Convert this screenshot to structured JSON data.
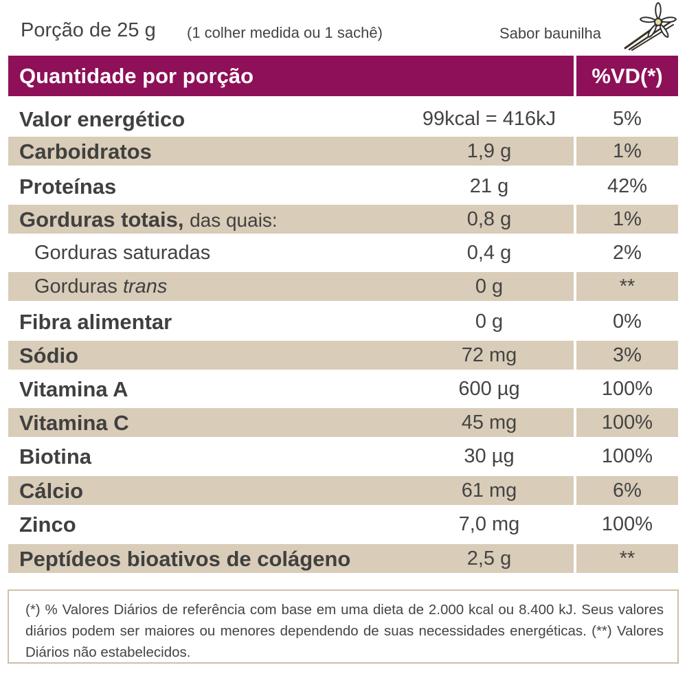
{
  "header": {
    "portion": "Porção de 25 g",
    "spoon": "(1 colher medida ou 1 sachê)",
    "flavor": "Sabor baunilha",
    "col_quantity": "Quantidade por porção",
    "col_vd": "%VD(*)"
  },
  "rows": [
    {
      "label": "Valor energético",
      "amount": "99kcal = 416kJ",
      "vd": "5%"
    },
    {
      "label": "Carboidratos",
      "amount": "1,9 g",
      "vd": "1%"
    },
    {
      "label": "Proteínas",
      "amount": "21 g",
      "vd": "42%"
    },
    {
      "label": "Gorduras totais,",
      "label_suffix": "das quais:",
      "amount": "0,8 g",
      "vd": "1%"
    },
    {
      "label": "Gorduras saturadas",
      "amount": "0,4 g",
      "vd": "2%"
    },
    {
      "label": "Gorduras",
      "label_suffix": "trans",
      "amount": "0 g",
      "vd": "**"
    },
    {
      "label": "Fibra alimentar",
      "amount": "0 g",
      "vd": "0%"
    },
    {
      "label": "Sódio",
      "amount": "72 mg",
      "vd": "3%"
    },
    {
      "label": "Vitamina A",
      "amount": "600 µg",
      "vd": "100%"
    },
    {
      "label": "Vitamina C",
      "amount": "45 mg",
      "vd": "100%"
    },
    {
      "label": "Biotina",
      "amount": "30 µg",
      "vd": "100%"
    },
    {
      "label": "Cálcio",
      "amount": "61 mg",
      "vd": "6%"
    },
    {
      "label": "Zinco",
      "amount": "7,0 mg",
      "vd": "100%"
    },
    {
      "label": "Peptídeos bioativos de colágeno",
      "amount": "2,5 g",
      "vd": "**"
    }
  ],
  "footnote": "(*) % Valores Diários de referência com base em uma dieta de 2.000 kcal ou 8.400 kJ. Seus valores diários podem ser maiores ou menores dependendo de suas necessidades energéticas. (**) Valores Diários não estabelecidos.",
  "colors": {
    "header_bg": "#8e1058",
    "row_shade": "#d9ccb8",
    "text": "#404040"
  },
  "icons": {
    "flavor": "vanilla-flower-icon"
  }
}
